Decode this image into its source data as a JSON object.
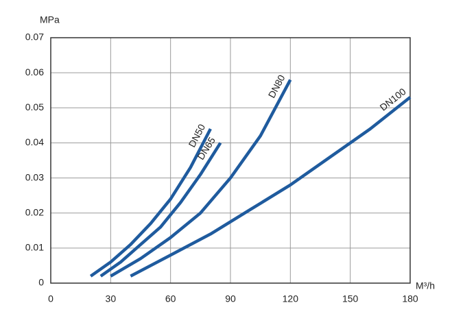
{
  "chart_data": {
    "type": "line",
    "y_label": "MPa",
    "x_label": "M³/h",
    "xlim": [
      0,
      180
    ],
    "xticks": [
      0,
      30,
      60,
      90,
      120,
      150,
      180
    ],
    "ylim": [
      0,
      0.07
    ],
    "yticks": [
      0,
      0.01,
      0.02,
      0.03,
      0.04,
      0.05,
      0.06,
      0.07
    ],
    "grid": true,
    "series": [
      {
        "name": "DN50",
        "color": "#1f5b9e",
        "x": [
          20,
          30,
          40,
          50,
          60,
          70,
          80
        ],
        "values": [
          0.002,
          0.006,
          0.011,
          0.017,
          0.024,
          0.033,
          0.044
        ]
      },
      {
        "name": "DN65",
        "color": "#1f5b9e",
        "x": [
          25,
          35,
          45,
          55,
          65,
          75,
          85
        ],
        "values": [
          0.002,
          0.006,
          0.011,
          0.016,
          0.023,
          0.031,
          0.04
        ]
      },
      {
        "name": "DN80",
        "color": "#1f5b9e",
        "x": [
          30,
          45,
          60,
          75,
          90,
          105,
          120
        ],
        "values": [
          0.002,
          0.007,
          0.013,
          0.02,
          0.03,
          0.042,
          0.058
        ]
      },
      {
        "name": "DN100",
        "color": "#1f5b9e",
        "x": [
          40,
          60,
          80,
          100,
          120,
          140,
          160,
          180
        ],
        "values": [
          0.002,
          0.008,
          0.014,
          0.021,
          0.028,
          0.036,
          0.044,
          0.053
        ]
      }
    ]
  }
}
